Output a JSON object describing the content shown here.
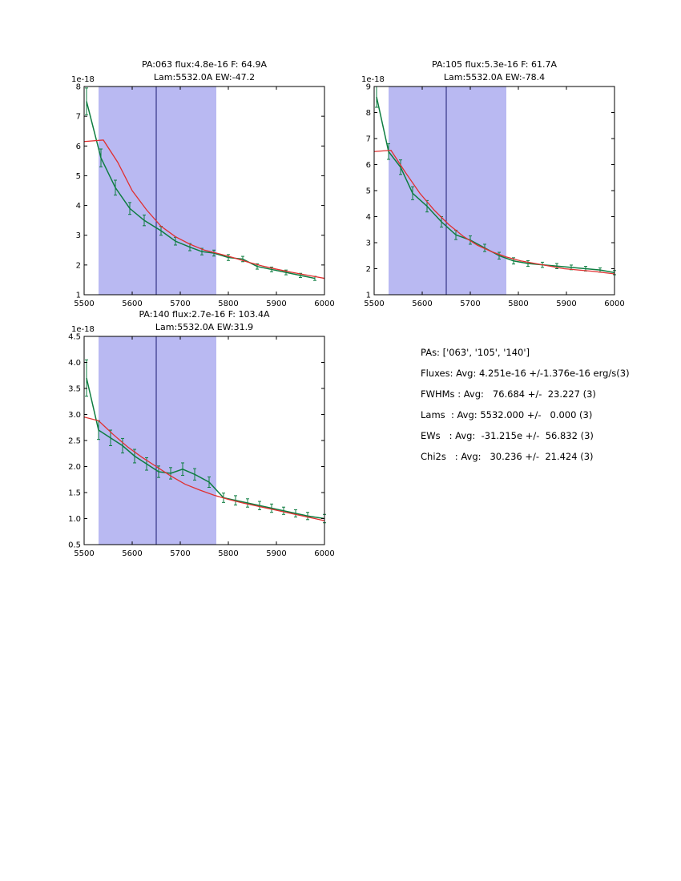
{
  "colors": {
    "band": "#b9b9f2",
    "vline": "#191970",
    "data": "#0d7d40",
    "fit": "#e03030",
    "axis": "#000000"
  },
  "summary": {
    "lines": [
      "PAs: ['063', '105', '140']",
      "Fluxes: Avg: 4.251e-16 +/-1.376e-16 erg/s(3)",
      "FWHMs : Avg:   76.684 +/-  23.227 (3)",
      "Lams  : Avg: 5532.000 +/-   0.000 (3)",
      "EWs   : Avg:  -31.215e +/-  56.832 (3)",
      "Chi2s   : Avg:   30.236 +/-  21.424 (3)"
    ]
  },
  "chart_data": [
    {
      "type": "line",
      "title": "PA:063 flux:4.8e-16 F: 64.9A",
      "subtitle": "Lam:5532.0A EW:-47.2",
      "offset_label": "1e-18",
      "xlim": [
        5500,
        6000
      ],
      "ylim": [
        1,
        8
      ],
      "xticks": [
        5500,
        5600,
        5700,
        5800,
        5900,
        6000
      ],
      "yticks": [
        1,
        2,
        3,
        4,
        5,
        6,
        7,
        8
      ],
      "ytick_labels": [
        "1",
        "2",
        "3",
        "4",
        "5",
        "6",
        "7",
        "8"
      ],
      "band": [
        5530,
        5775
      ],
      "vline": 5650,
      "series": [
        {
          "name": "data",
          "color_key": "data",
          "x": [
            5505,
            5535,
            5565,
            5595,
            5625,
            5660,
            5690,
            5720,
            5745,
            5770,
            5800,
            5830,
            5860,
            5890,
            5920,
            5950,
            5980
          ],
          "y": [
            7.5,
            5.6,
            4.6,
            3.9,
            3.5,
            3.15,
            2.8,
            2.6,
            2.45,
            2.4,
            2.25,
            2.2,
            1.95,
            1.85,
            1.75,
            1.65,
            1.55
          ],
          "yerr": [
            0.45,
            0.3,
            0.25,
            0.2,
            0.18,
            0.15,
            0.13,
            0.12,
            0.11,
            0.1,
            0.1,
            0.09,
            0.09,
            0.08,
            0.08,
            0.07,
            0.07
          ]
        },
        {
          "name": "fit",
          "color_key": "fit",
          "x": [
            5500,
            5540,
            5570,
            5600,
            5630,
            5660,
            5690,
            5720,
            5750,
            5780,
            5810,
            5840,
            5870,
            5900,
            5930,
            5960,
            6000
          ],
          "y": [
            6.15,
            6.2,
            5.45,
            4.5,
            3.85,
            3.3,
            2.95,
            2.7,
            2.5,
            2.38,
            2.25,
            2.1,
            1.97,
            1.86,
            1.76,
            1.67,
            1.55
          ]
        }
      ]
    },
    {
      "type": "line",
      "title": "PA:105 flux:5.3e-16 F: 61.7A",
      "subtitle": "Lam:5532.0A EW:-78.4",
      "offset_label": "1e-18",
      "xlim": [
        5500,
        6000
      ],
      "ylim": [
        1,
        9
      ],
      "xticks": [
        5500,
        5600,
        5700,
        5800,
        5900,
        6000
      ],
      "yticks": [
        1,
        2,
        3,
        4,
        5,
        6,
        7,
        8,
        9
      ],
      "ytick_labels": [
        "1",
        "2",
        "3",
        "4",
        "5",
        "6",
        "7",
        "8",
        "9"
      ],
      "band": [
        5530,
        5775
      ],
      "vline": 5650,
      "series": [
        {
          "name": "data",
          "color_key": "data",
          "x": [
            5505,
            5530,
            5555,
            5580,
            5610,
            5640,
            5670,
            5700,
            5730,
            5760,
            5790,
            5820,
            5850,
            5880,
            5910,
            5940,
            5970,
            6000
          ],
          "y": [
            8.6,
            6.5,
            5.9,
            4.9,
            4.4,
            3.8,
            3.3,
            3.1,
            2.8,
            2.5,
            2.3,
            2.2,
            2.15,
            2.1,
            2.05,
            2.0,
            1.95,
            1.85
          ],
          "yerr": [
            0.4,
            0.3,
            0.28,
            0.25,
            0.22,
            0.2,
            0.18,
            0.16,
            0.14,
            0.13,
            0.12,
            0.11,
            0.1,
            0.1,
            0.09,
            0.09,
            0.08,
            0.08
          ]
        },
        {
          "name": "fit",
          "color_key": "fit",
          "x": [
            5500,
            5535,
            5565,
            5595,
            5625,
            5655,
            5685,
            5715,
            5745,
            5775,
            5805,
            5835,
            5865,
            5895,
            5925,
            5955,
            6000
          ],
          "y": [
            6.5,
            6.55,
            5.7,
            4.9,
            4.25,
            3.7,
            3.25,
            2.9,
            2.65,
            2.45,
            2.3,
            2.2,
            2.1,
            2.0,
            1.95,
            1.9,
            1.8
          ]
        }
      ]
    },
    {
      "type": "line",
      "title": "PA:140 flux:2.7e-16 F: 103.4A",
      "subtitle": "Lam:5532.0A EW:31.9",
      "offset_label": "1e-18",
      "xlim": [
        5500,
        6000
      ],
      "ylim": [
        0.5,
        4.5
      ],
      "xticks": [
        5500,
        5600,
        5700,
        5800,
        5900,
        6000
      ],
      "yticks": [
        0.5,
        1,
        1.5,
        2,
        2.5,
        3,
        3.5,
        4,
        4.5
      ],
      "ytick_labels": [
        "0.5",
        "1.0",
        "1.5",
        "2.0",
        "2.5",
        "3.0",
        "3.5",
        "4.0",
        "4.5"
      ],
      "band": [
        5530,
        5775
      ],
      "vline": 5650,
      "series": [
        {
          "name": "data",
          "color_key": "data",
          "x": [
            5505,
            5530,
            5555,
            5580,
            5605,
            5630,
            5655,
            5680,
            5705,
            5730,
            5760,
            5790,
            5815,
            5840,
            5865,
            5890,
            5915,
            5940,
            5965,
            6000
          ],
          "y": [
            3.7,
            2.7,
            2.55,
            2.4,
            2.2,
            2.05,
            1.9,
            1.87,
            1.95,
            1.85,
            1.7,
            1.4,
            1.35,
            1.3,
            1.25,
            1.2,
            1.15,
            1.1,
            1.05,
            1.0
          ],
          "yerr": [
            0.35,
            0.18,
            0.15,
            0.14,
            0.13,
            0.12,
            0.11,
            0.11,
            0.12,
            0.11,
            0.1,
            0.09,
            0.09,
            0.08,
            0.08,
            0.08,
            0.07,
            0.07,
            0.07,
            0.08
          ]
        },
        {
          "name": "fit",
          "color_key": "fit",
          "x": [
            5500,
            5530,
            5560,
            5590,
            5620,
            5650,
            5680,
            5710,
            5740,
            5770,
            5800,
            5830,
            5860,
            5890,
            5920,
            5950,
            5980,
            6000
          ],
          "y": [
            2.95,
            2.88,
            2.62,
            2.38,
            2.18,
            2.0,
            1.82,
            1.66,
            1.55,
            1.45,
            1.37,
            1.3,
            1.24,
            1.18,
            1.12,
            1.06,
            1.0,
            0.96
          ]
        }
      ]
    }
  ]
}
